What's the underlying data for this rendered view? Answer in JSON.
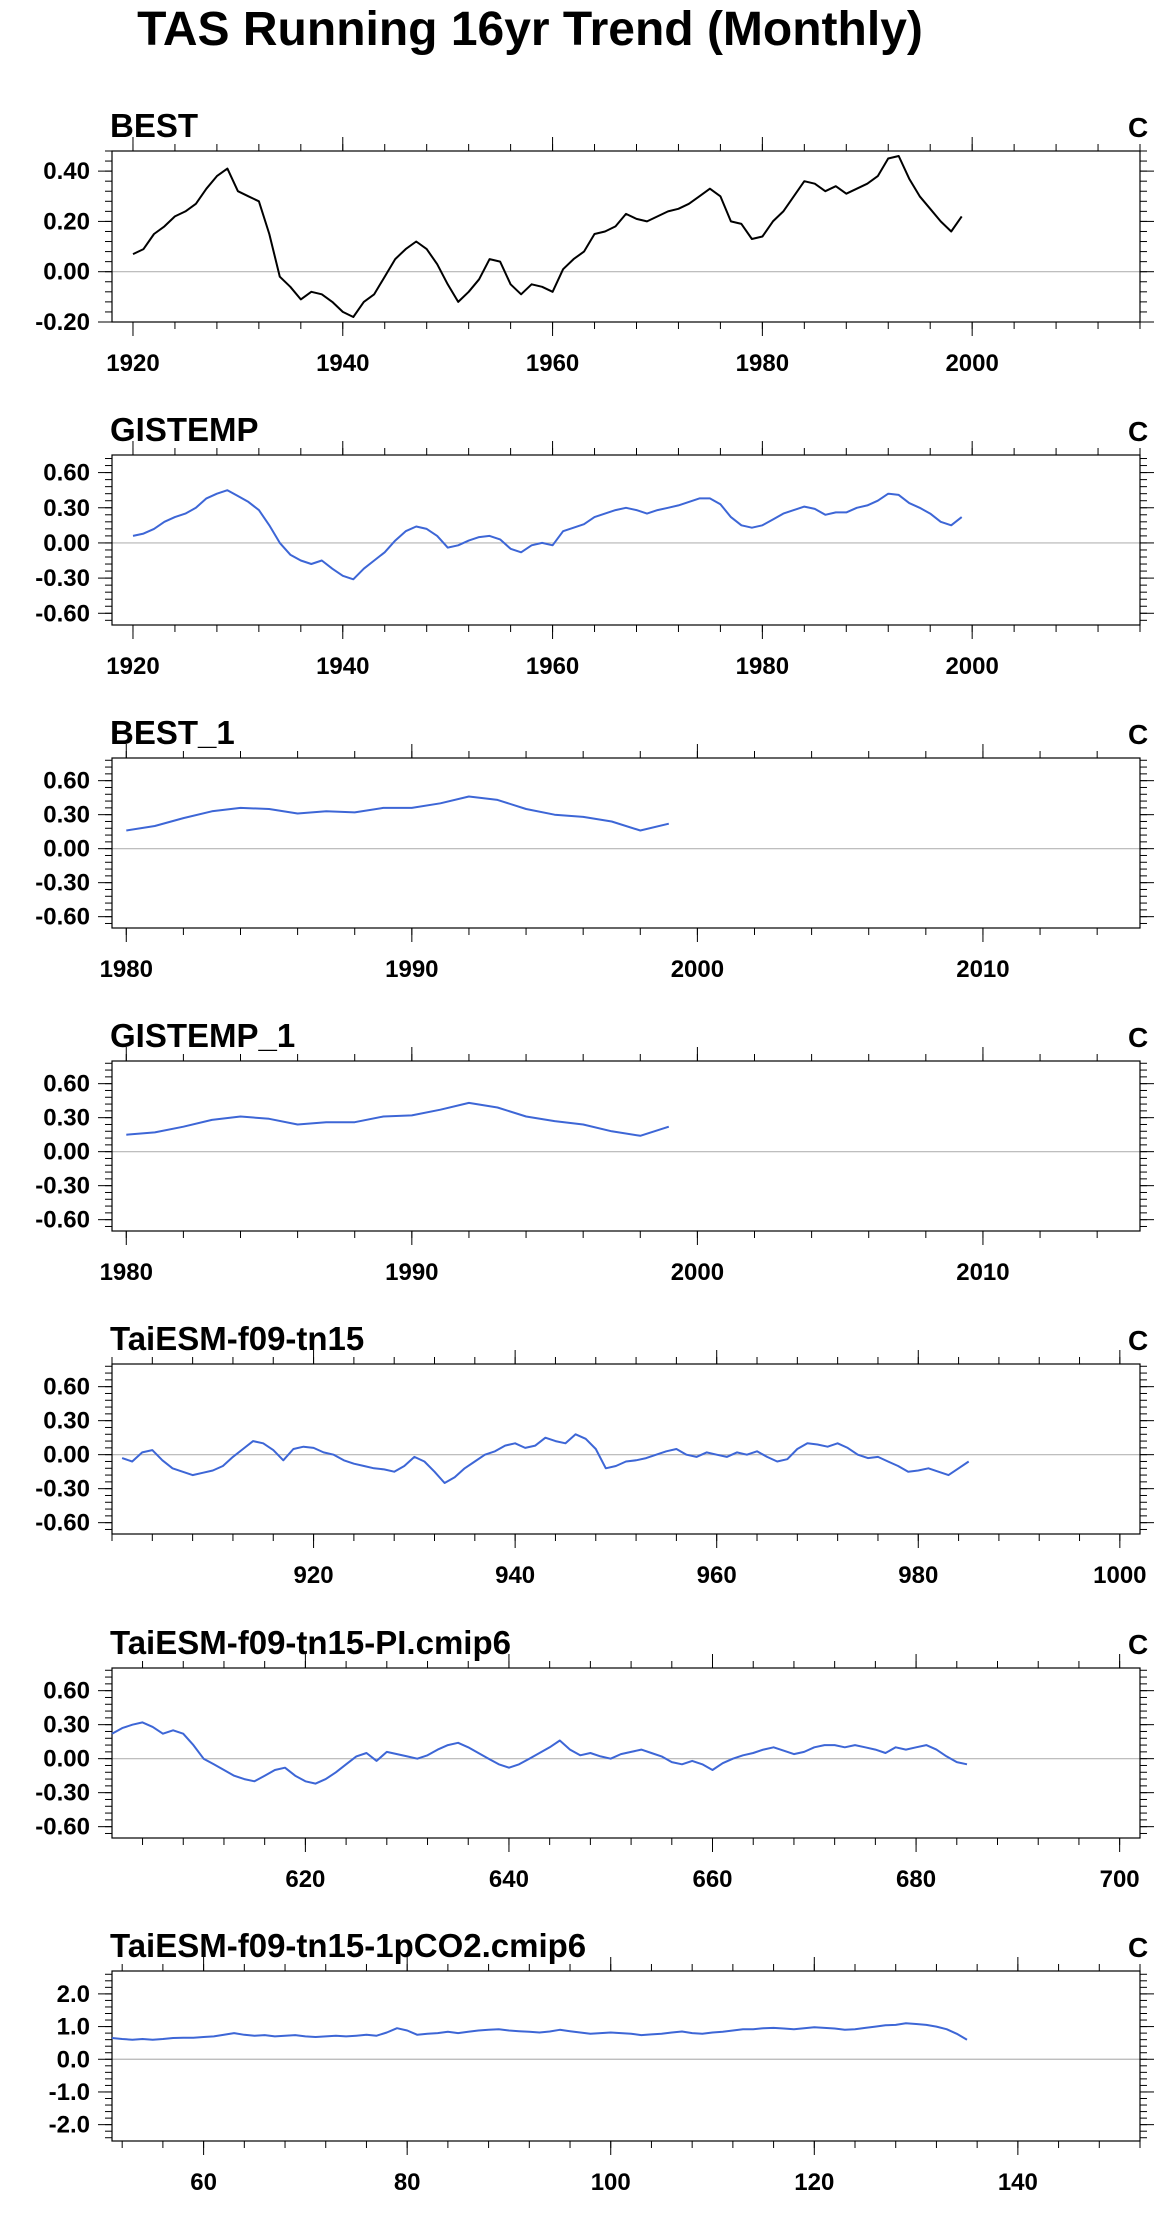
{
  "figure_title": "TAS Running 16yr Trend (Monthly)",
  "chart_data": [
    {
      "type": "line",
      "title": "BEST",
      "units": "C",
      "color": "#000000",
      "xlim": [
        1918,
        2016
      ],
      "ylim": [
        -0.2,
        0.48
      ],
      "xticks": [
        1920,
        1940,
        1960,
        1980,
        2000
      ],
      "xtick_labels": [
        "1920",
        "1940",
        "1960",
        "1980",
        "2000"
      ],
      "yticks": [
        -0.2,
        0,
        0.2,
        0.4
      ],
      "ytick_labels": [
        "-0.20",
        "0.00",
        "0.20",
        "0.40"
      ],
      "x": [
        1920,
        1921,
        1922,
        1923,
        1924,
        1925,
        1926,
        1927,
        1928,
        1929,
        1930,
        1931,
        1932,
        1933,
        1934,
        1935,
        1936,
        1937,
        1938,
        1939,
        1940,
        1941,
        1942,
        1943,
        1944,
        1945,
        1946,
        1947,
        1948,
        1949,
        1950,
        1951,
        1952,
        1953,
        1954,
        1955,
        1956,
        1957,
        1958,
        1959,
        1960,
        1961,
        1962,
        1963,
        1964,
        1965,
        1966,
        1967,
        1968,
        1969,
        1970,
        1971,
        1972,
        1973,
        1974,
        1975,
        1976,
        1977,
        1978,
        1979,
        1980,
        1981,
        1982,
        1983,
        1984,
        1985,
        1986,
        1987,
        1988,
        1989,
        1990,
        1991,
        1992,
        1993,
        1994,
        1995,
        1996,
        1997,
        1998,
        1999
      ],
      "values": [
        0.07,
        0.09,
        0.15,
        0.18,
        0.22,
        0.24,
        0.27,
        0.33,
        0.38,
        0.41,
        0.32,
        0.3,
        0.28,
        0.15,
        -0.02,
        -0.06,
        -0.11,
        -0.08,
        -0.09,
        -0.12,
        -0.16,
        -0.18,
        -0.12,
        -0.09,
        -0.02,
        0.05,
        0.09,
        0.12,
        0.09,
        0.03,
        -0.05,
        -0.12,
        -0.08,
        -0.03,
        0.05,
        0.04,
        -0.05,
        -0.09,
        -0.05,
        -0.06,
        -0.08,
        0.01,
        0.05,
        0.08,
        0.15,
        0.16,
        0.18,
        0.23,
        0.21,
        0.2,
        0.22,
        0.24,
        0.25,
        0.27,
        0.3,
        0.33,
        0.3,
        0.2,
        0.19,
        0.13,
        0.14,
        0.2,
        0.24,
        0.3,
        0.36,
        0.35,
        0.32,
        0.34,
        0.31,
        0.33,
        0.35,
        0.38,
        0.45,
        0.46,
        0.37,
        0.3,
        0.25,
        0.2,
        0.16,
        0.22
      ]
    },
    {
      "type": "line",
      "title": "GISTEMP",
      "units": "C",
      "color": "#3d66d6",
      "xlim": [
        1918,
        2016
      ],
      "ylim": [
        -0.7,
        0.75
      ],
      "xticks": [
        1920,
        1940,
        1960,
        1980,
        2000
      ],
      "xtick_labels": [
        "1920",
        "1940",
        "1960",
        "1980",
        "2000"
      ],
      "yticks": [
        -0.6,
        -0.3,
        0,
        0.3,
        0.6
      ],
      "ytick_labels": [
        "-0.60",
        "-0.30",
        "0.00",
        "0.30",
        "0.60"
      ],
      "x": [
        1920,
        1921,
        1922,
        1923,
        1924,
        1925,
        1926,
        1927,
        1928,
        1929,
        1930,
        1931,
        1932,
        1933,
        1934,
        1935,
        1936,
        1937,
        1938,
        1939,
        1940,
        1941,
        1942,
        1943,
        1944,
        1945,
        1946,
        1947,
        1948,
        1949,
        1950,
        1951,
        1952,
        1953,
        1954,
        1955,
        1956,
        1957,
        1958,
        1959,
        1960,
        1961,
        1962,
        1963,
        1964,
        1965,
        1966,
        1967,
        1968,
        1969,
        1970,
        1971,
        1972,
        1973,
        1974,
        1975,
        1976,
        1977,
        1978,
        1979,
        1980,
        1981,
        1982,
        1983,
        1984,
        1985,
        1986,
        1987,
        1988,
        1989,
        1990,
        1991,
        1992,
        1993,
        1994,
        1995,
        1996,
        1997,
        1998,
        1999
      ],
      "values": [
        0.06,
        0.08,
        0.12,
        0.18,
        0.22,
        0.25,
        0.3,
        0.38,
        0.42,
        0.45,
        0.4,
        0.35,
        0.28,
        0.15,
        0.0,
        -0.1,
        -0.15,
        -0.18,
        -0.15,
        -0.22,
        -0.28,
        -0.31,
        -0.22,
        -0.15,
        -0.08,
        0.02,
        0.1,
        0.14,
        0.12,
        0.06,
        -0.04,
        -0.02,
        0.02,
        0.05,
        0.06,
        0.03,
        -0.05,
        -0.08,
        -0.02,
        0.0,
        -0.02,
        0.1,
        0.13,
        0.16,
        0.22,
        0.25,
        0.28,
        0.3,
        0.28,
        0.25,
        0.28,
        0.3,
        0.32,
        0.35,
        0.38,
        0.38,
        0.33,
        0.22,
        0.15,
        0.13,
        0.15,
        0.2,
        0.25,
        0.28,
        0.31,
        0.29,
        0.24,
        0.26,
        0.26,
        0.3,
        0.32,
        0.36,
        0.42,
        0.41,
        0.34,
        0.3,
        0.25,
        0.18,
        0.15,
        0.22
      ]
    },
    {
      "type": "line",
      "title": "BEST_1",
      "units": "C",
      "color": "#3d66d6",
      "xlim": [
        1979.5,
        2015.5
      ],
      "ylim": [
        -0.7,
        0.8
      ],
      "xticks": [
        1980,
        1990,
        2000,
        2010
      ],
      "xtick_labels": [
        "1980",
        "1990",
        "2000",
        "2010"
      ],
      "yticks": [
        -0.6,
        -0.3,
        0,
        0.3,
        0.6
      ],
      "ytick_labels": [
        "-0.60",
        "-0.30",
        "0.00",
        "0.30",
        "0.60"
      ],
      "x": [
        1980,
        1981,
        1982,
        1983,
        1984,
        1985,
        1986,
        1987,
        1988,
        1989,
        1990,
        1991,
        1992,
        1993,
        1994,
        1995,
        1996,
        1997,
        1998,
        1999
      ],
      "values": [
        0.16,
        0.2,
        0.27,
        0.33,
        0.36,
        0.35,
        0.31,
        0.33,
        0.32,
        0.36,
        0.36,
        0.4,
        0.46,
        0.43,
        0.35,
        0.3,
        0.28,
        0.24,
        0.16,
        0.22
      ]
    },
    {
      "type": "line",
      "title": "GISTEMP_1",
      "units": "C",
      "color": "#3d66d6",
      "xlim": [
        1979.5,
        2015.5
      ],
      "ylim": [
        -0.7,
        0.8
      ],
      "xticks": [
        1980,
        1990,
        2000,
        2010
      ],
      "xtick_labels": [
        "1980",
        "1990",
        "2000",
        "2010"
      ],
      "yticks": [
        -0.6,
        -0.3,
        0,
        0.3,
        0.6
      ],
      "ytick_labels": [
        "-0.60",
        "-0.30",
        "0.00",
        "0.30",
        "0.60"
      ],
      "x": [
        1980,
        1981,
        1982,
        1983,
        1984,
        1985,
        1986,
        1987,
        1988,
        1989,
        1990,
        1991,
        1992,
        1993,
        1994,
        1995,
        1996,
        1997,
        1998,
        1999
      ],
      "values": [
        0.15,
        0.17,
        0.22,
        0.28,
        0.31,
        0.29,
        0.24,
        0.26,
        0.26,
        0.31,
        0.32,
        0.37,
        0.43,
        0.39,
        0.31,
        0.27,
        0.24,
        0.18,
        0.14,
        0.22
      ]
    },
    {
      "type": "line",
      "title": "TaiESM-f09-tn15",
      "units": "C",
      "color": "#3d66d6",
      "xlim": [
        900,
        1002
      ],
      "ylim": [
        -0.7,
        0.8
      ],
      "xticks": [
        920,
        940,
        960,
        980,
        1000
      ],
      "xtick_labels": [
        "920",
        "940",
        "960",
        "980",
        "1000"
      ],
      "yticks": [
        -0.6,
        -0.3,
        0,
        0.3,
        0.6
      ],
      "ytick_labels": [
        "-0.60",
        "-0.30",
        "0.00",
        "0.30",
        "0.60"
      ],
      "x": [
        901,
        902,
        903,
        904,
        905,
        906,
        907,
        908,
        909,
        910,
        911,
        912,
        913,
        914,
        915,
        916,
        917,
        918,
        919,
        920,
        921,
        922,
        923,
        924,
        925,
        926,
        927,
        928,
        929,
        930,
        931,
        932,
        933,
        934,
        935,
        936,
        937,
        938,
        939,
        940,
        941,
        942,
        943,
        944,
        945,
        946,
        947,
        948,
        949,
        950,
        951,
        952,
        953,
        954,
        955,
        956,
        957,
        958,
        959,
        960,
        961,
        962,
        963,
        964,
        965,
        966,
        967,
        968,
        969,
        970,
        971,
        972,
        973,
        974,
        975,
        976,
        977,
        978,
        979,
        980,
        981,
        982,
        983,
        984,
        985
      ],
      "values": [
        -0.03,
        -0.06,
        0.02,
        0.04,
        -0.05,
        -0.12,
        -0.15,
        -0.18,
        -0.16,
        -0.14,
        -0.1,
        -0.02,
        0.05,
        0.12,
        0.1,
        0.04,
        -0.05,
        0.05,
        0.07,
        0.06,
        0.02,
        0.0,
        -0.05,
        -0.08,
        -0.1,
        -0.12,
        -0.13,
        -0.15,
        -0.1,
        -0.02,
        -0.06,
        -0.15,
        -0.25,
        -0.2,
        -0.12,
        -0.06,
        0.0,
        0.03,
        0.08,
        0.1,
        0.06,
        0.08,
        0.15,
        0.12,
        0.1,
        0.18,
        0.14,
        0.05,
        -0.12,
        -0.1,
        -0.06,
        -0.05,
        -0.03,
        0.0,
        0.03,
        0.05,
        0.0,
        -0.02,
        0.02,
        0.0,
        -0.02,
        0.02,
        0.0,
        0.03,
        -0.02,
        -0.06,
        -0.04,
        0.05,
        0.1,
        0.09,
        0.07,
        0.1,
        0.06,
        0.0,
        -0.03,
        -0.02,
        -0.06,
        -0.1,
        -0.15,
        -0.14,
        -0.12,
        -0.15,
        -0.18,
        -0.12,
        -0.06
      ]
    },
    {
      "type": "line",
      "title": "TaiESM-f09-tn15-PI.cmip6",
      "units": "C",
      "color": "#3d66d6",
      "xlim": [
        601,
        702
      ],
      "ylim": [
        -0.7,
        0.8
      ],
      "xticks": [
        620,
        640,
        660,
        680,
        700
      ],
      "xtick_labels": [
        "620",
        "640",
        "660",
        "680",
        "700"
      ],
      "yticks": [
        -0.6,
        -0.3,
        0,
        0.3,
        0.6
      ],
      "ytick_labels": [
        "-0.60",
        "-0.30",
        "0.00",
        "0.30",
        "0.60"
      ],
      "x": [
        601,
        602,
        603,
        604,
        605,
        606,
        607,
        608,
        609,
        610,
        611,
        612,
        613,
        614,
        615,
        616,
        617,
        618,
        619,
        620,
        621,
        622,
        623,
        624,
        625,
        626,
        627,
        628,
        629,
        630,
        631,
        632,
        633,
        634,
        635,
        636,
        637,
        638,
        639,
        640,
        641,
        642,
        643,
        644,
        645,
        646,
        647,
        648,
        649,
        650,
        651,
        652,
        653,
        654,
        655,
        656,
        657,
        658,
        659,
        660,
        661,
        662,
        663,
        664,
        665,
        666,
        667,
        668,
        669,
        670,
        671,
        672,
        673,
        674,
        675,
        676,
        677,
        678,
        679,
        680,
        681,
        682,
        683,
        684,
        685
      ],
      "values": [
        0.22,
        0.27,
        0.3,
        0.32,
        0.28,
        0.22,
        0.25,
        0.22,
        0.12,
        0.0,
        -0.05,
        -0.1,
        -0.15,
        -0.18,
        -0.2,
        -0.15,
        -0.1,
        -0.08,
        -0.15,
        -0.2,
        -0.22,
        -0.18,
        -0.12,
        -0.05,
        0.02,
        0.05,
        -0.02,
        0.06,
        0.04,
        0.02,
        0.0,
        0.03,
        0.08,
        0.12,
        0.14,
        0.1,
        0.05,
        0.0,
        -0.05,
        -0.08,
        -0.05,
        0.0,
        0.05,
        0.1,
        0.16,
        0.08,
        0.03,
        0.05,
        0.02,
        0.0,
        0.04,
        0.06,
        0.08,
        0.05,
        0.02,
        -0.03,
        -0.05,
        -0.02,
        -0.05,
        -0.1,
        -0.04,
        0.0,
        0.03,
        0.05,
        0.08,
        0.1,
        0.07,
        0.04,
        0.06,
        0.1,
        0.12,
        0.12,
        0.1,
        0.12,
        0.1,
        0.08,
        0.05,
        0.1,
        0.08,
        0.1,
        0.12,
        0.08,
        0.02,
        -0.03,
        -0.05
      ]
    },
    {
      "type": "line",
      "title": "TaiESM-f09-tn15-1pCO2.cmip6",
      "units": "C",
      "color": "#3d66d6",
      "xlim": [
        51,
        152
      ],
      "ylim": [
        -2.5,
        2.7
      ],
      "xticks": [
        60,
        80,
        100,
        120,
        140
      ],
      "xtick_labels": [
        "60",
        "80",
        "100",
        "120",
        "140"
      ],
      "yticks": [
        -2,
        -1,
        0,
        1,
        2
      ],
      "ytick_labels": [
        "-2.0",
        "-1.0",
        "0.0",
        "1.0",
        "2.0"
      ],
      "x": [
        51,
        52,
        53,
        54,
        55,
        56,
        57,
        58,
        59,
        60,
        61,
        62,
        63,
        64,
        65,
        66,
        67,
        68,
        69,
        70,
        71,
        72,
        73,
        74,
        75,
        76,
        77,
        78,
        79,
        80,
        81,
        82,
        83,
        84,
        85,
        86,
        87,
        88,
        89,
        90,
        91,
        92,
        93,
        94,
        95,
        96,
        97,
        98,
        99,
        100,
        101,
        102,
        103,
        104,
        105,
        106,
        107,
        108,
        109,
        110,
        111,
        112,
        113,
        114,
        115,
        116,
        117,
        118,
        119,
        120,
        121,
        122,
        123,
        124,
        125,
        126,
        127,
        128,
        129,
        130,
        131,
        132,
        133,
        134,
        135
      ],
      "values": [
        0.65,
        0.62,
        0.6,
        0.62,
        0.6,
        0.62,
        0.65,
        0.66,
        0.66,
        0.68,
        0.7,
        0.75,
        0.8,
        0.75,
        0.72,
        0.74,
        0.7,
        0.72,
        0.74,
        0.7,
        0.68,
        0.7,
        0.72,
        0.7,
        0.72,
        0.75,
        0.72,
        0.82,
        0.95,
        0.88,
        0.75,
        0.78,
        0.8,
        0.84,
        0.8,
        0.84,
        0.88,
        0.9,
        0.92,
        0.88,
        0.86,
        0.84,
        0.82,
        0.85,
        0.9,
        0.86,
        0.82,
        0.78,
        0.8,
        0.82,
        0.8,
        0.78,
        0.74,
        0.76,
        0.78,
        0.82,
        0.85,
        0.8,
        0.78,
        0.82,
        0.84,
        0.88,
        0.92,
        0.92,
        0.95,
        0.96,
        0.94,
        0.92,
        0.95,
        0.98,
        0.96,
        0.94,
        0.9,
        0.92,
        0.96,
        1.0,
        1.04,
        1.05,
        1.1,
        1.08,
        1.05,
        1.0,
        0.92,
        0.78,
        0.6
      ]
    }
  ]
}
